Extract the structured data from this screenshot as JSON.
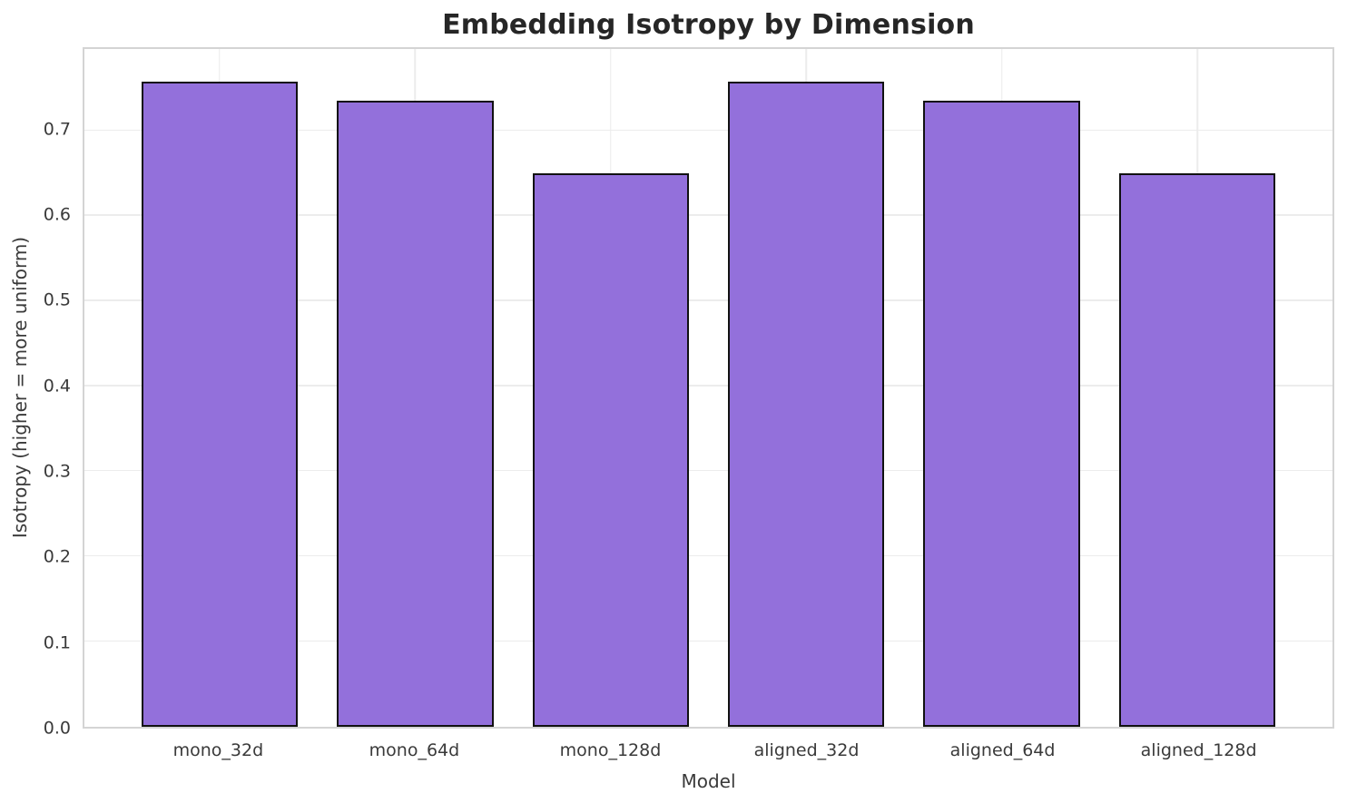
{
  "chart_data": {
    "type": "bar",
    "title": "Embedding Isotropy by Dimension",
    "xlabel": "Model",
    "ylabel": "Isotropy (higher = more uniform)",
    "categories": [
      "mono_32d",
      "mono_64d",
      "mono_128d",
      "aligned_32d",
      "aligned_64d",
      "aligned_128d"
    ],
    "values": [
      0.758,
      0.735,
      0.65,
      0.758,
      0.735,
      0.65
    ],
    "ylim": [
      0,
      0.796
    ],
    "yticks": [
      0.0,
      0.1,
      0.2,
      0.3,
      0.4,
      0.5,
      0.6,
      0.7
    ],
    "ytick_labels": [
      "0.0",
      "0.1",
      "0.2",
      "0.3",
      "0.4",
      "0.5",
      "0.6",
      "0.7"
    ],
    "grid": true,
    "legend": "none",
    "colors": {
      "bar_fill": "#9370db",
      "bar_edge": "#111111",
      "gridline": "#ececec",
      "spine": "#d4d4d4",
      "tick_text": "#3a3a3a",
      "title_text": "#262626",
      "background": "#ffffff"
    }
  }
}
